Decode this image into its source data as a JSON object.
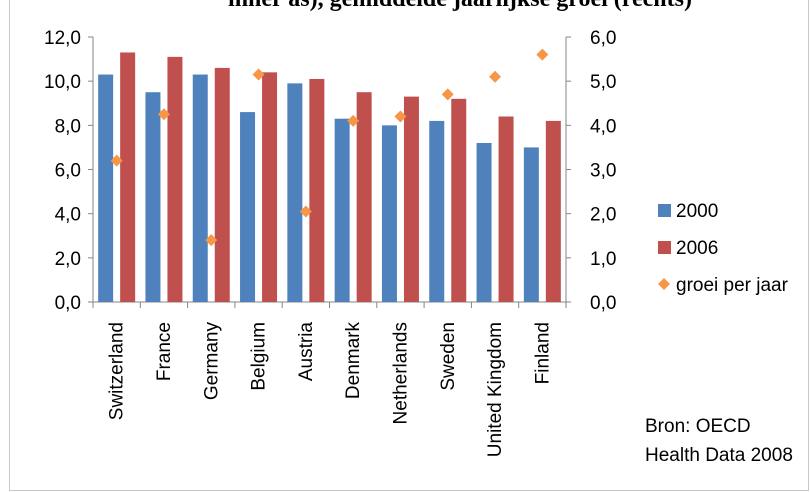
{
  "chart_data": {
    "type": "bar",
    "title": "inner as), gemiddelde jaarlijkse groei (rechts)",
    "categories": [
      "Switzerland",
      "France",
      "Germany",
      "Belgium",
      "Austria",
      "Denmark",
      "Netherlands",
      "Sweden",
      "United Kingdom",
      "Finland"
    ],
    "series": [
      {
        "name": "2000",
        "kind": "bar",
        "axis": "left",
        "color": "#4f81bd",
        "values": [
          10.3,
          9.5,
          10.3,
          8.6,
          9.9,
          8.3,
          8.0,
          8.2,
          7.2,
          7.0
        ]
      },
      {
        "name": "2006",
        "kind": "bar",
        "axis": "left",
        "color": "#c0504d",
        "values": [
          11.3,
          11.1,
          10.6,
          10.4,
          10.1,
          9.5,
          9.3,
          9.2,
          8.4,
          8.2
        ]
      },
      {
        "name": "groei per jaar",
        "kind": "marker",
        "axis": "right",
        "color": "#f79646",
        "values": [
          3.2,
          4.25,
          1.4,
          5.15,
          2.05,
          4.1,
          4.2,
          4.7,
          5.1,
          5.6
        ]
      }
    ],
    "y_left": {
      "range": [
        0,
        12
      ],
      "ticks": [
        "0,0",
        "2,0",
        "4,0",
        "6,0",
        "8,0",
        "10,0",
        "12,0"
      ]
    },
    "y_right": {
      "range": [
        0,
        6
      ],
      "ticks": [
        "0,0",
        "1,0",
        "2,0",
        "3,0",
        "4,0",
        "5,0",
        "6,0"
      ]
    },
    "grid": false,
    "legend": "right"
  },
  "source": {
    "line1": "Bron: OECD",
    "line2": "Health Data 2008"
  }
}
